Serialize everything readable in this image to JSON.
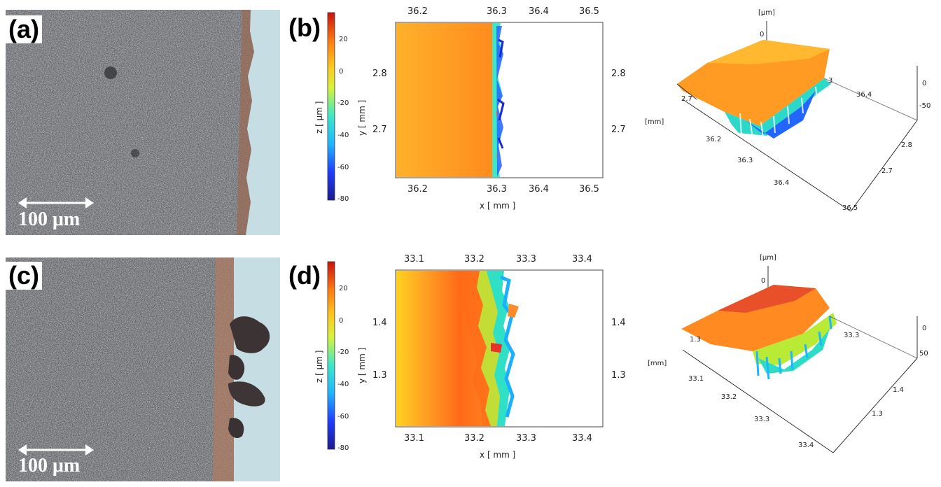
{
  "panels": {
    "a": {
      "label": "(a)",
      "scalebar": "100 μm"
    },
    "b": {
      "label": "(b)",
      "colorbar": {
        "title": "z [ μm ]",
        "ticks": [
          "20",
          "0",
          "-20",
          "-40",
          "-60",
          "-80"
        ]
      },
      "map": {
        "xlabel": "x [ mm ]",
        "ylabel": "y [ mm ]",
        "xticks": [
          "36.2",
          "36.3",
          "36.4",
          "36.5"
        ],
        "yticks": [
          "2.8",
          "2.7"
        ]
      },
      "surface3d": {
        "z_unit": "[μm]",
        "xy_unit": "[mm]",
        "z_ticks": [
          "0",
          "0",
          "-50"
        ],
        "x_ticks": [
          "36.2",
          "36.3",
          "36.4",
          "36.5"
        ],
        "y_ticks": [
          "2.8",
          "2.7"
        ],
        "top_ticks": [
          "2.7",
          "36.4",
          "3"
        ]
      }
    },
    "c": {
      "label": "(c)",
      "scalebar": "100 μm"
    },
    "d": {
      "label": "(d)",
      "colorbar": {
        "title": "z [ μm ]",
        "ticks": [
          "20",
          "0",
          "-20",
          "-40",
          "-60",
          "-80"
        ]
      },
      "map": {
        "xlabel": "x [ mm ]",
        "ylabel": "y [ mm ]",
        "xticks": [
          "33.1",
          "33.2",
          "33.3",
          "33.4"
        ],
        "yticks": [
          "1.4",
          "1.3"
        ]
      },
      "surface3d": {
        "z_unit": "[μm]",
        "xy_unit": "[mm]",
        "z_ticks": [
          "0",
          "0",
          "50"
        ],
        "x_ticks": [
          "33.1",
          "33.2",
          "33.3",
          "33.4"
        ],
        "y_ticks": [
          "1.4",
          "1.3"
        ],
        "top_ticks": [
          "1.3",
          "33.3"
        ]
      }
    }
  }
}
